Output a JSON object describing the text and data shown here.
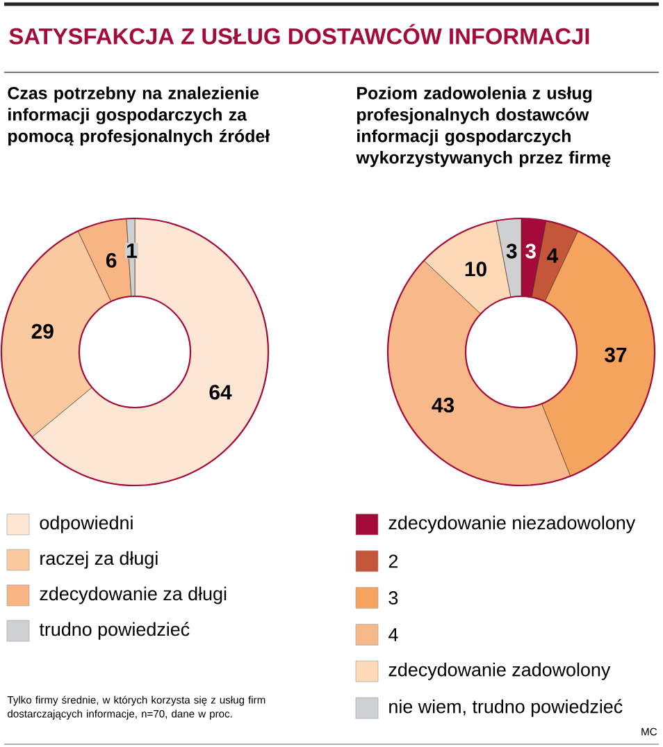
{
  "chart_data": [
    {
      "type": "donut",
      "title": "SATYSFAKCJA Z USŁUG DOSTAWCÓW INFORMACJI",
      "subtitle": "Czas potrzebny na znalezienie informacji gospodarczych za pomocą profesjonalnych źródeł",
      "categories": [
        "odpowiedni",
        "raczej za długi",
        "zdecydowanie za długi",
        "trudno powiedzieć"
      ],
      "values": [
        64,
        29,
        6,
        1
      ],
      "colors": [
        "#fde6d4",
        "#fbc9a0",
        "#f8b483",
        "#cfd0d2"
      ],
      "data_labels": true,
      "legend": "bottom",
      "annotations": [
        "Tylko firmy średnie, w których korzysta się z usług firm dostarczających informacje, n=70, dane w proc."
      ]
    },
    {
      "type": "donut",
      "subtitle": "Poziom zadowolenia z usług profesjonalnych dostawców informacji gospodarczych wykorzystywanych przez firmę",
      "categories": [
        "zdecydowanie niezadowolony",
        "2",
        "3",
        "4",
        "zdecydowanie zadowolony",
        "nie wiem, trudno powiedzieć"
      ],
      "values": [
        3,
        4,
        37,
        43,
        10,
        3
      ],
      "colors": [
        "#a50b3a",
        "#c4573a",
        "#f5a460",
        "#f8b98a",
        "#fdd9b8",
        "#cfd0d2"
      ],
      "data_labels": true,
      "legend": "bottom",
      "annotations": [
        "MC"
      ]
    }
  ]
}
